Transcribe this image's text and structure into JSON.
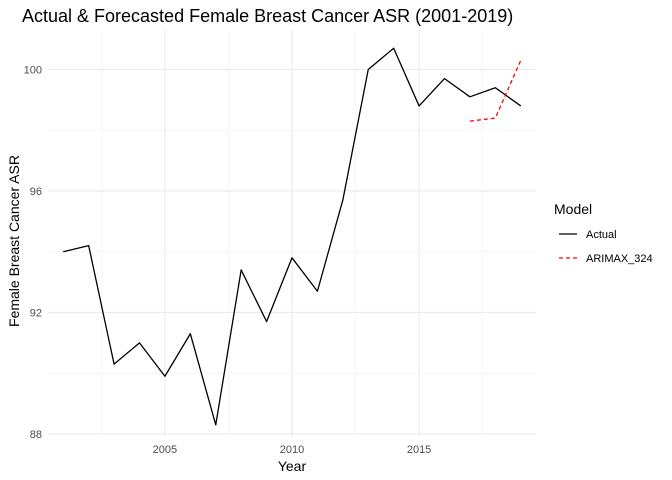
{
  "chart_data": {
    "type": "line",
    "title": "Actual & Forecasted Female Breast Cancer ASR (2001-2019)",
    "xlabel": "Year",
    "ylabel": "Female Breast Cancer ASR",
    "xlim": [
      2000.4,
      2019.6
    ],
    "ylim": [
      87.9,
      101.3
    ],
    "x_ticks": [
      2005,
      2010,
      2015
    ],
    "y_ticks": [
      88,
      92,
      96,
      100
    ],
    "grid": true,
    "legend": {
      "title": "Model",
      "position": "right"
    },
    "series": [
      {
        "name": "Actual",
        "color": "#000000",
        "dash": "solid",
        "x": [
          2001,
          2002,
          2003,
          2004,
          2005,
          2006,
          2007,
          2008,
          2009,
          2010,
          2011,
          2012,
          2013,
          2014,
          2015,
          2016,
          2017,
          2018,
          2019
        ],
        "values": [
          94.0,
          94.2,
          90.3,
          91.0,
          89.9,
          91.3,
          88.3,
          93.4,
          91.7,
          93.8,
          92.7,
          95.7,
          100.0,
          100.7,
          98.8,
          99.7,
          99.1,
          99.4,
          98.8
        ]
      },
      {
        "name": "ARIMAX_324",
        "color": "#ff0000",
        "dash": "dashed",
        "x": [
          2017,
          2018,
          2019
        ],
        "values": [
          98.3,
          98.4,
          100.3
        ]
      }
    ]
  }
}
